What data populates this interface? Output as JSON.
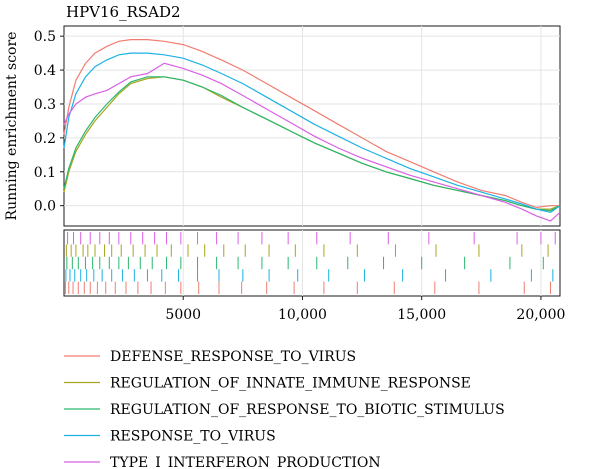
{
  "chart_data": {
    "type": "line",
    "title": "HPV16_RSAD2",
    "ylabel": "Running enrichment score",
    "xlabel": "",
    "xlim": [
      0,
      20800
    ],
    "ylim": [
      -0.06,
      0.53
    ],
    "y_ticks": [
      0.0,
      0.1,
      0.2,
      0.3,
      0.4,
      0.5
    ],
    "y_tick_labels": [
      "0.0",
      "0.1",
      "0.2",
      "0.3",
      "0.4",
      "0.5"
    ],
    "x_ticks": [
      5000,
      10000,
      15000,
      20000
    ],
    "x_tick_labels": [
      "5000",
      "10,000",
      "15,000",
      "20,000"
    ],
    "grid": true,
    "legend_position": "bottom",
    "series": [
      {
        "name": "DEFENSE_RESPONSE_TO_VIRUS",
        "color": "#f07d72",
        "x": [
          0,
          200,
          500,
          900,
          1300,
          1800,
          2300,
          2800,
          3500,
          4200,
          5000,
          5800,
          6600,
          7500,
          8500,
          9500,
          10500,
          11500,
          12500,
          13500,
          14500,
          15500,
          16500,
          17500,
          18500,
          19200,
          19800,
          20400,
          20800
        ],
        "y": [
          0.21,
          0.29,
          0.37,
          0.42,
          0.45,
          0.47,
          0.485,
          0.49,
          0.49,
          0.485,
          0.475,
          0.455,
          0.43,
          0.4,
          0.36,
          0.32,
          0.28,
          0.24,
          0.2,
          0.16,
          0.13,
          0.1,
          0.07,
          0.045,
          0.03,
          0.01,
          -0.005,
          0.0,
          0.0
        ]
      },
      {
        "name": "REGULATION_OF_INNATE_IMMUNE_RESPONSE",
        "color": "#a7a51f",
        "x": [
          0,
          200,
          500,
          900,
          1300,
          1800,
          2300,
          2800,
          3500,
          4200,
          5000,
          5800,
          6600,
          7500,
          8500,
          9500,
          10500,
          11500,
          12500,
          13500,
          14500,
          15500,
          16500,
          17500,
          18500,
          19200,
          19800,
          20400,
          20800
        ],
        "y": [
          0.04,
          0.1,
          0.16,
          0.21,
          0.25,
          0.29,
          0.33,
          0.36,
          0.375,
          0.38,
          0.37,
          0.35,
          0.32,
          0.29,
          0.255,
          0.22,
          0.185,
          0.155,
          0.125,
          0.1,
          0.08,
          0.06,
          0.045,
          0.03,
          0.015,
          0.0,
          -0.01,
          -0.01,
          0.0
        ]
      },
      {
        "name": "REGULATION_OF_RESPONSE_TO_BIOTIC_STIMULUS",
        "color": "#2bb76f",
        "x": [
          0,
          200,
          500,
          900,
          1300,
          1800,
          2300,
          2800,
          3500,
          4200,
          5000,
          5800,
          6600,
          7500,
          8500,
          9500,
          10500,
          11500,
          12500,
          13500,
          14500,
          15500,
          16500,
          17500,
          18500,
          19200,
          19800,
          20400,
          20800
        ],
        "y": [
          0.05,
          0.11,
          0.17,
          0.22,
          0.26,
          0.3,
          0.335,
          0.365,
          0.38,
          0.38,
          0.37,
          0.35,
          0.325,
          0.29,
          0.255,
          0.22,
          0.185,
          0.155,
          0.125,
          0.1,
          0.08,
          0.06,
          0.045,
          0.03,
          0.015,
          0.0,
          -0.01,
          -0.015,
          0.0
        ]
      },
      {
        "name": "RESPONSE_TO_VIRUS",
        "color": "#1cb2e3",
        "x": [
          0,
          200,
          500,
          900,
          1300,
          1800,
          2300,
          2800,
          3500,
          4200,
          5000,
          5800,
          6600,
          7500,
          8500,
          9500,
          10500,
          11500,
          12500,
          13500,
          14500,
          15500,
          16500,
          17500,
          18500,
          19200,
          19800,
          20400,
          20800
        ],
        "y": [
          0.17,
          0.26,
          0.33,
          0.38,
          0.41,
          0.43,
          0.445,
          0.45,
          0.45,
          0.445,
          0.435,
          0.415,
          0.39,
          0.36,
          0.32,
          0.28,
          0.24,
          0.205,
          0.17,
          0.14,
          0.11,
          0.085,
          0.06,
          0.04,
          0.02,
          0.005,
          -0.01,
          -0.02,
          0.0
        ]
      },
      {
        "name": "TYPE_I_INTERFERON_PRODUCTION",
        "color": "#d960e4",
        "x": [
          0,
          200,
          500,
          900,
          1300,
          1800,
          2300,
          2800,
          3500,
          4200,
          5000,
          5800,
          6600,
          7500,
          8500,
          9500,
          10500,
          11500,
          12500,
          13500,
          14500,
          15500,
          16500,
          17500,
          18500,
          19200,
          19800,
          20400,
          20800
        ],
        "y": [
          0.24,
          0.27,
          0.3,
          0.32,
          0.33,
          0.34,
          0.36,
          0.38,
          0.39,
          0.42,
          0.405,
          0.385,
          0.36,
          0.325,
          0.285,
          0.245,
          0.205,
          0.17,
          0.14,
          0.115,
          0.09,
          0.07,
          0.05,
          0.03,
          0.01,
          -0.01,
          -0.03,
          -0.045,
          -0.02
        ]
      }
    ],
    "hit_tracks": [
      {
        "series": "TYPE_I_INTERFERON_PRODUCTION",
        "color": "#d960e4",
        "hits": [
          150,
          400,
          700,
          1100,
          1500,
          1900,
          2300,
          2800,
          3300,
          3800,
          4300,
          4900,
          5600,
          6400,
          7300,
          8300,
          9400,
          10600,
          12000,
          13600,
          15300,
          17200,
          19000,
          20000,
          20600
        ]
      },
      {
        "series": "REGULATION_OF_INNATE_IMMUNE_RESPONSE",
        "color": "#a7a51f",
        "hits": [
          100,
          300,
          500,
          800,
          1000,
          1300,
          1700,
          2000,
          2400,
          2900,
          3400,
          3900,
          4500,
          5200,
          5900,
          6700,
          7600,
          8600,
          9700,
          10900,
          12300,
          13900,
          15600,
          17400,
          19200,
          20300
        ]
      },
      {
        "series": "REGULATION_OF_RESPONSE_TO_BIOTIC_STIMULUS",
        "color": "#2bb76f",
        "hits": [
          120,
          350,
          600,
          900,
          1200,
          1500,
          1900,
          2300,
          2700,
          3200,
          3700,
          4300,
          4900,
          5600,
          6400,
          7300,
          8300,
          9400,
          10600,
          11900,
          13400,
          15000,
          16800,
          18700,
          20100
        ]
      },
      {
        "series": "RESPONSE_TO_VIRUS",
        "color": "#1cb2e3",
        "hits": [
          80,
          250,
          450,
          700,
          950,
          1250,
          1600,
          2000,
          2450,
          2950,
          3500,
          4100,
          4800,
          5600,
          6500,
          7500,
          8600,
          9800,
          11100,
          12600,
          14200,
          16000,
          17900,
          19600,
          20500
        ]
      },
      {
        "series": "DEFENSE_RESPONSE_TO_VIRUS",
        "color": "#f07d72",
        "hits": [
          60,
          200,
          380,
          600,
          850,
          1100,
          1400,
          1750,
          2150,
          2600,
          3100,
          3650,
          4250,
          4900,
          5650,
          6500,
          7450,
          8500,
          9650,
          10900,
          12300,
          13850,
          15550,
          17400,
          19300,
          20400
        ]
      }
    ]
  }
}
